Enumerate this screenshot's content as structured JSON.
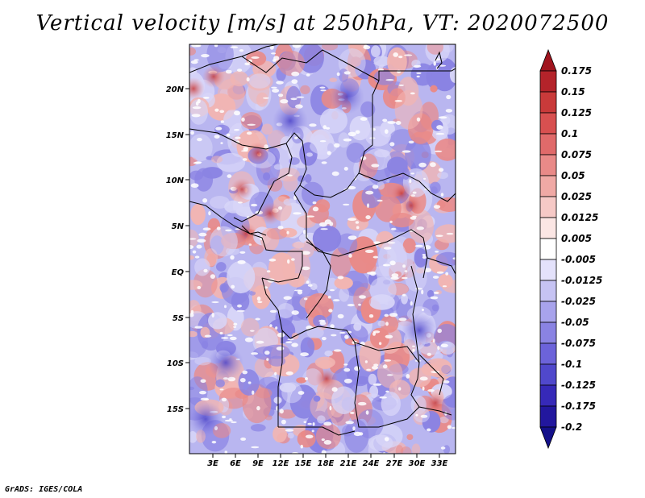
{
  "title": "Vertical velocity [m/s] at 250hPa, VT: 2020072500",
  "footer": "GrADS: IGES/COLA",
  "map": {
    "lat_ticks": [
      "20N",
      "15N",
      "10N",
      "5N",
      "EQ",
      "5S",
      "10S",
      "15S"
    ],
    "lon_ticks": [
      "3E",
      "6E",
      "9E",
      "12E",
      "15E",
      "18E",
      "21E",
      "24E",
      "27E",
      "30E",
      "33E"
    ]
  },
  "colorbar": {
    "labels": [
      "0.175",
      "0.15",
      "0.125",
      "0.1",
      "0.075",
      "0.05",
      "0.025",
      "0.0125",
      "0.005",
      "-0.005",
      "-0.0125",
      "-0.025",
      "-0.05",
      "-0.075",
      "-0.1",
      "-0.125",
      "-0.175",
      "-0.2"
    ],
    "colors": [
      "#a0141e",
      "#b4232a",
      "#c93a3a",
      "#d85050",
      "#e06a6a",
      "#e98a88",
      "#f0a9a5",
      "#f6c9c6",
      "#fbe6e4",
      "#ffffff",
      "#e4e2fb",
      "#c6c3f3",
      "#a8a3ec",
      "#8a83e3",
      "#6c63da",
      "#5048cc",
      "#3629b8",
      "#22179e",
      "#14108a"
    ]
  }
}
